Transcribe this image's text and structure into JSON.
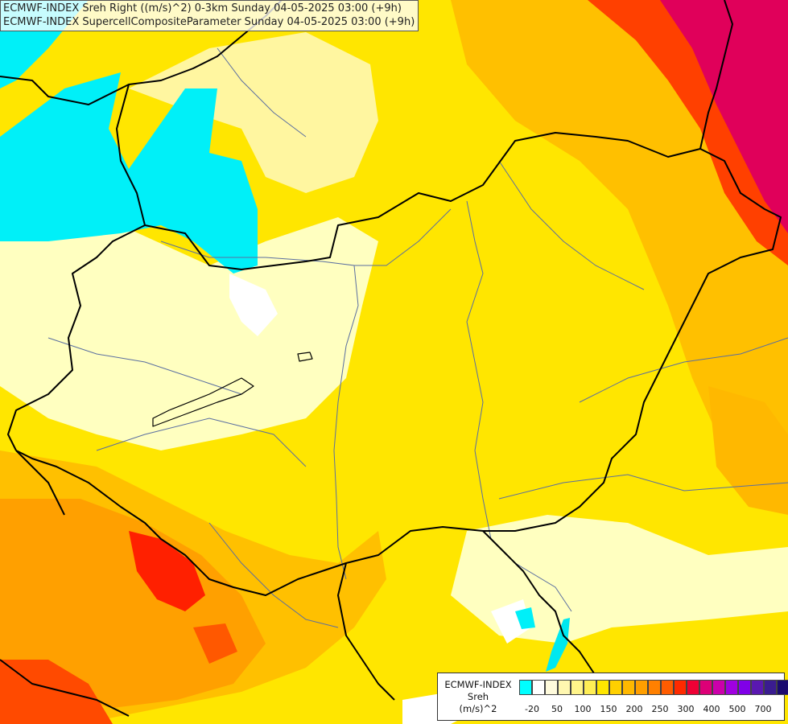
{
  "header": {
    "line1": "ECMWF-INDEX Sreh Right ((m/s)^2) 0-3km Sunday 04-05-2025 03:00 (+9h)",
    "line2": "ECMWF-INDEX SupercellCompositeParameter Sunday 04-05-2025 03:00 (+9h)"
  },
  "legend": {
    "title_line1": "ECMWF-INDEX",
    "title_line2": "Sreh",
    "title_line3": "(m/s)^2",
    "colors": [
      "#00ffff",
      "#ffffff",
      "#fffbdc",
      "#fff7b0",
      "#fff48a",
      "#ffee55",
      "#ffe600",
      "#ffd000",
      "#ffb800",
      "#ff9f00",
      "#ff8000",
      "#ff5c00",
      "#ff2a00",
      "#ee0035",
      "#dd0077",
      "#cc00aa",
      "#a000e0",
      "#8000e8",
      "#5a18b0",
      "#3a1c90",
      "#1a0a70"
    ],
    "ticks": [
      "-20",
      "50",
      "100",
      "150",
      "200",
      "250",
      "300",
      "400",
      "500",
      "700"
    ]
  },
  "palette": {
    "cyan": "#00f0f8",
    "pale": "#ffffc0",
    "yellow": "#ffee00",
    "orange": "#ffb000",
    "red": "#ff2000",
    "magenta": "#e00050",
    "border": "#000000",
    "river": "#5a6ea0"
  }
}
